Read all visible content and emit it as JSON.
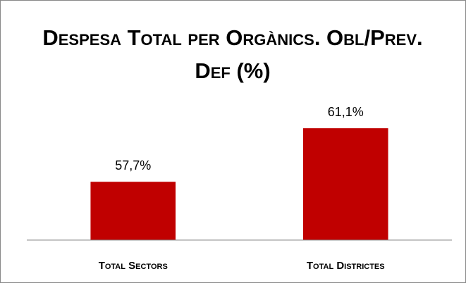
{
  "chart_data": {
    "type": "bar",
    "title": "Despesa Total per Orgànics. Obl/Prev. Def (%)",
    "categories": [
      "Total Sectors",
      "Total Districtes"
    ],
    "values": [
      57.7,
      61.1
    ],
    "value_labels": [
      "57,7%",
      "61,1%"
    ],
    "color": "#c00000",
    "ylim": [
      54,
      62
    ]
  }
}
